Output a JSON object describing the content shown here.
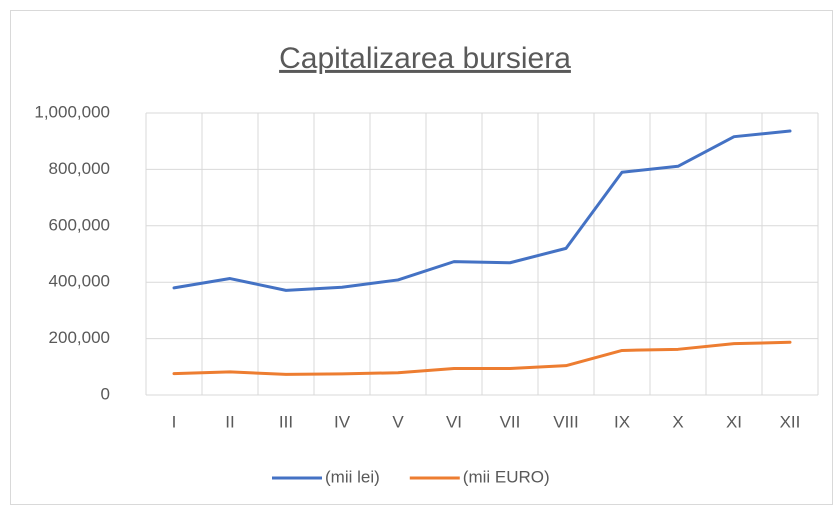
{
  "chart_data": {
    "type": "line",
    "title": "Capitalizarea bursiera",
    "categories": [
      "I",
      "II",
      "III",
      "IV",
      "V",
      "VI",
      "VII",
      "VIII",
      "IX",
      "X",
      "XI",
      "XII"
    ],
    "series": [
      {
        "name": "(mii lei)",
        "color": "#4472c4",
        "values": [
          380000,
          413000,
          371000,
          382000,
          408000,
          473000,
          469000,
          520000,
          790000,
          811000,
          916000,
          936000
        ]
      },
      {
        "name": "(mii EURO)",
        "color": "#ed7d31",
        "values": [
          76000,
          82000,
          73000,
          75000,
          79000,
          94000,
          94000,
          104000,
          158000,
          162000,
          182000,
          187000
        ]
      }
    ],
    "ylim": [
      0,
      1000000
    ],
    "yticks": [
      0,
      {
        "value": 200000,
        "label": "200,000"
      },
      {
        "value": 400000,
        "label": "400,000"
      },
      {
        "value": 600000,
        "label": "600,000"
      },
      {
        "value": 800000,
        "label": "800,000"
      },
      {
        "value": 1000000,
        "label": "1,000,000"
      }
    ],
    "grid": true,
    "legend": "bottom"
  }
}
